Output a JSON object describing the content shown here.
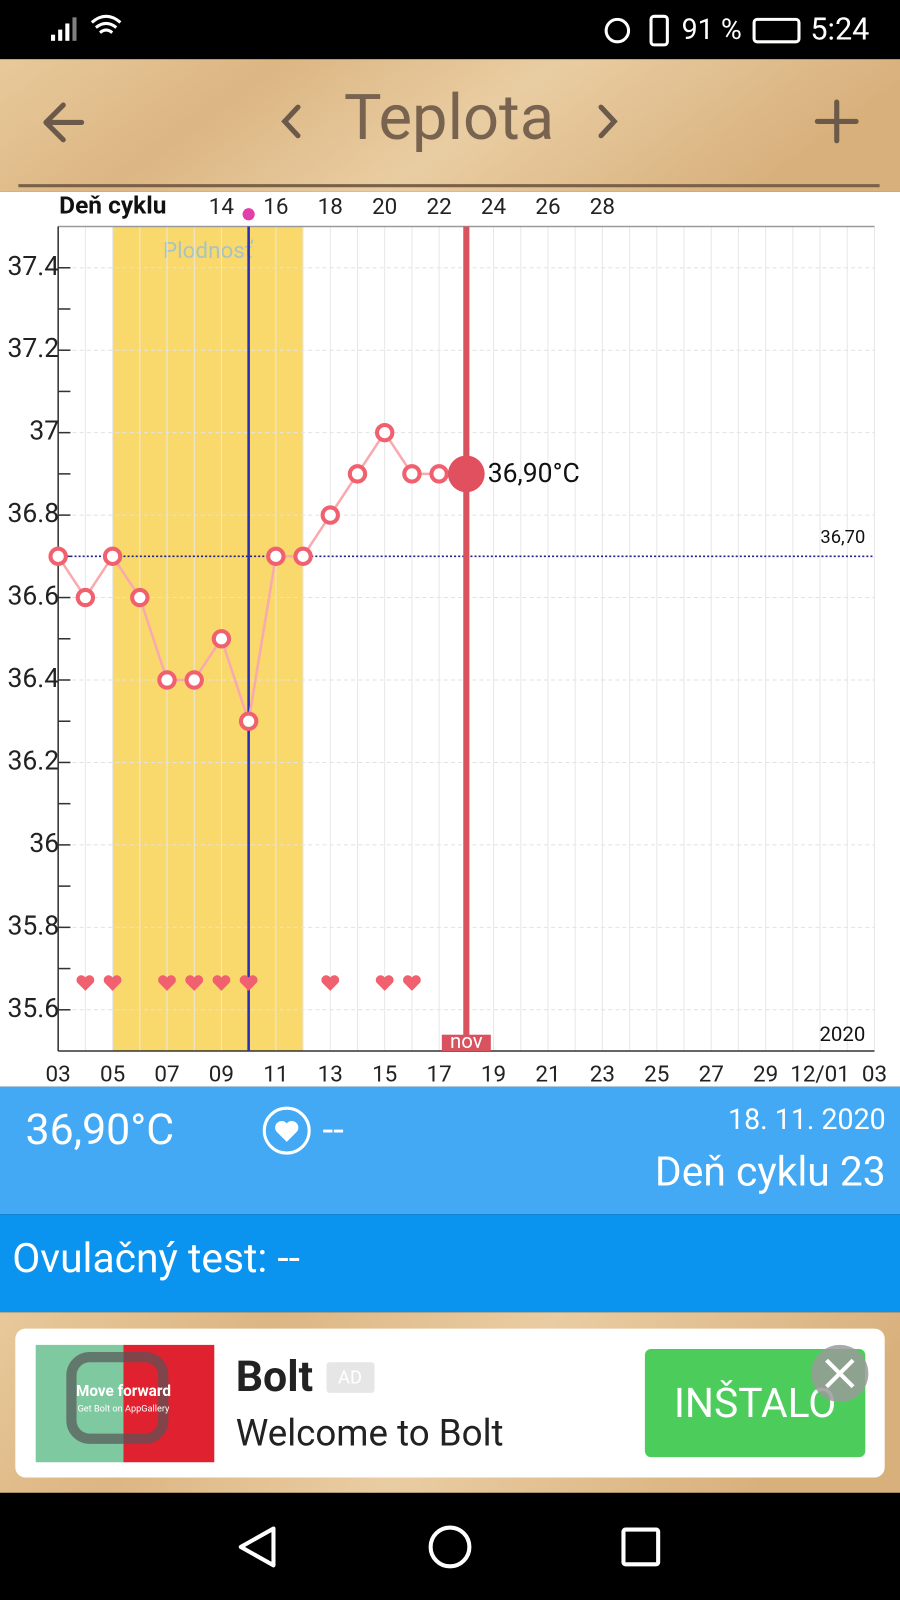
{
  "status_bar": {
    "battery": "91 %",
    "time": "5:24"
  },
  "header": {
    "title": "Teplota"
  },
  "chart_data": {
    "type": "line",
    "x_axis_label": "Deň cyklu",
    "categories": [
      "03",
      null,
      "05",
      null,
      "07",
      null,
      "09",
      null,
      "11",
      null,
      "13",
      null,
      "15",
      null,
      "17",
      null,
      "19",
      null,
      "21",
      null,
      "23",
      null,
      "25",
      null,
      "27",
      null,
      "29",
      null,
      "12/01",
      null,
      "03"
    ],
    "values": [
      36.7,
      36.6,
      36.7,
      36.6,
      36.4,
      36.4,
      36.5,
      36.3,
      36.7,
      36.7,
      36.8,
      36.9,
      37.0,
      36.9,
      36.9,
      36.9,
      null,
      null,
      null,
      null,
      null,
      null,
      null,
      null,
      null,
      null,
      null,
      null,
      null,
      null,
      null
    ],
    "color": "#f0606e",
    "ylim": [
      35.5,
      37.5
    ],
    "yticks": [
      35.6,
      35.8,
      36,
      36.2,
      36.4,
      36.6,
      36.8,
      37,
      37.2,
      37.4
    ],
    "yminorticks": [
      35.7,
      35.9,
      36.1,
      36.3,
      36.5,
      36.7,
      36.9,
      37.1,
      37.3
    ],
    "x2lim": [
      8,
      38
    ],
    "x2ticks": [
      14,
      16,
      18,
      20,
      22,
      24,
      26,
      28
    ],
    "grid": true,
    "fertile_window": {
      "label": "Plodnosť",
      "start": 2,
      "end": 9
    },
    "ovulation_day": 7,
    "today": {
      "index": 15,
      "label": "nov"
    },
    "selected": {
      "index": 15,
      "label": "36,90°C"
    },
    "coverline": {
      "value": 36.7,
      "label": "36,70"
    },
    "year_label": "2020",
    "hearts": [
      1,
      2,
      4,
      5,
      6,
      7,
      10,
      12,
      13
    ]
  },
  "summary": {
    "temperature": "36,90°C",
    "heart": "--",
    "date": "18. 11. 2020",
    "cycle_day": "Deň cyklu 23"
  },
  "ovulation_test": "Ovulačný test: --",
  "ad": {
    "image_title": "Move forward",
    "image_subtitle": "Get Bolt on AppGallery",
    "name": "Bolt",
    "badge": "AD",
    "text": "Welcome to Bolt",
    "button": "INŠTALO"
  }
}
